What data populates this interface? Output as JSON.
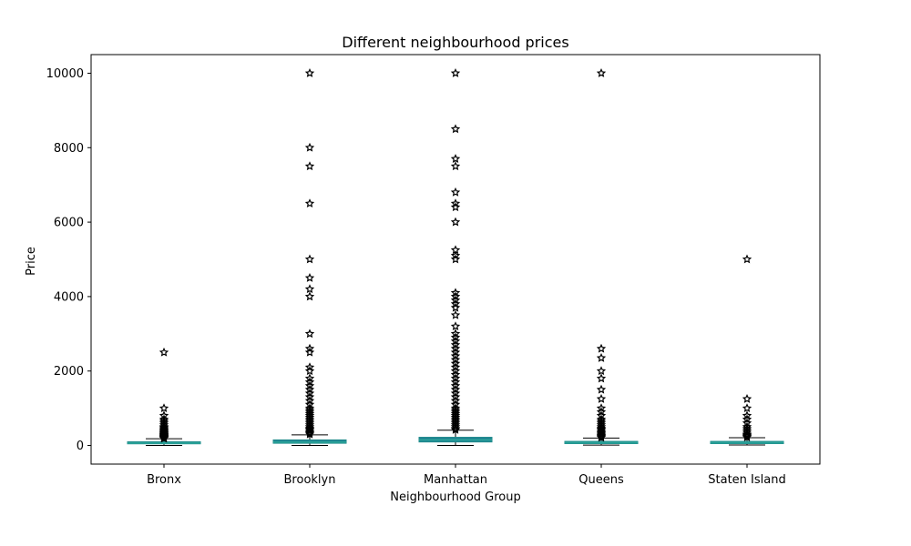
{
  "chart_data": {
    "type": "boxplot",
    "title": "Different neighbourhood prices",
    "xlabel": "Neighbourhood Group",
    "ylabel": "Price",
    "ylim": [
      -500,
      10500
    ],
    "yticks": [
      0,
      2000,
      4000,
      6000,
      8000,
      10000
    ],
    "grid": false,
    "colors": {
      "box": "#1f7f93",
      "median": "#2aa198",
      "flier": "#000000"
    },
    "categories": [
      "Bronx",
      "Brooklyn",
      "Manhattan",
      "Queens",
      "Staten Island"
    ],
    "boxes": [
      {
        "name": "Bronx",
        "whisker_low": 0,
        "q1": 45,
        "median": 65,
        "q3": 99,
        "whisker_high": 180,
        "fliers": [
          185,
          195,
          200,
          210,
          220,
          230,
          240,
          250,
          260,
          275,
          290,
          300,
          320,
          340,
          360,
          380,
          400,
          420,
          450,
          480,
          500,
          550,
          600,
          650,
          700,
          800,
          1000,
          2500
        ]
      },
      {
        "name": "Brooklyn",
        "whisker_low": 0,
        "q1": 60,
        "median": 90,
        "q3": 150,
        "whisker_high": 285,
        "fliers": [
          300,
          330,
          360,
          400,
          430,
          460,
          500,
          550,
          600,
          650,
          700,
          750,
          800,
          850,
          900,
          950,
          1000,
          1100,
          1200,
          1300,
          1400,
          1500,
          1600,
          1700,
          1800,
          2000,
          2100,
          2500,
          2600,
          3000,
          4000,
          4200,
          4500,
          5000,
          6500,
          7500,
          8000,
          10000
        ]
      },
      {
        "name": "Manhattan",
        "whisker_low": 0,
        "q1": 95,
        "median": 150,
        "q3": 220,
        "whisker_high": 410,
        "fliers": [
          420,
          450,
          500,
          550,
          600,
          650,
          700,
          750,
          800,
          850,
          900,
          950,
          1000,
          1100,
          1200,
          1300,
          1400,
          1500,
          1600,
          1700,
          1800,
          1900,
          2000,
          2100,
          2200,
          2300,
          2400,
          2500,
          2600,
          2700,
          2800,
          2900,
          3000,
          3200,
          3500,
          3700,
          3800,
          3900,
          4000,
          4100,
          5000,
          5100,
          5250,
          6000,
          6400,
          6500,
          6800,
          7500,
          7700,
          8500,
          10000
        ]
      },
      {
        "name": "Queens",
        "whisker_low": 10,
        "q1": 50,
        "median": 75,
        "q3": 110,
        "whisker_high": 200,
        "fliers": [
          210,
          230,
          250,
          270,
          300,
          330,
          360,
          400,
          430,
          460,
          500,
          550,
          600,
          650,
          700,
          800,
          900,
          1000,
          1250,
          1500,
          1800,
          2000,
          2350,
          2600,
          10000
        ]
      },
      {
        "name": "Staten Island",
        "whisker_low": 13,
        "q1": 50,
        "median": 75,
        "q3": 110,
        "whisker_high": 210,
        "fliers": [
          220,
          240,
          260,
          280,
          300,
          350,
          400,
          450,
          500,
          600,
          700,
          800,
          1000,
          1250,
          5000
        ]
      }
    ]
  }
}
